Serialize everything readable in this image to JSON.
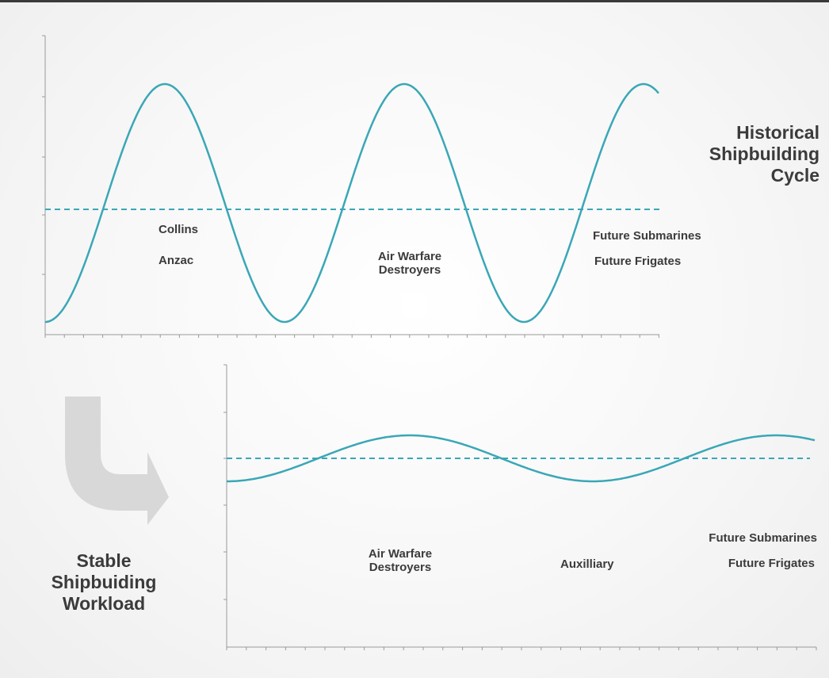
{
  "top_panel": {
    "title": "Historical\nShipbuilding\nCycle",
    "labels": [
      "Collins",
      "Anzac",
      "Air Warfare\nDestroyers",
      "Future Submarines",
      "Future Frigates"
    ]
  },
  "bottom_panel": {
    "title": "Stable\nShipbuiding\nWorkload",
    "labels": [
      "Air Warfare\nDestroyers",
      "Auxilliary",
      "Future Submarines",
      "Future Frigates"
    ]
  },
  "colors": {
    "curve": "#3aa7b6",
    "axis": "#9a9a9a",
    "arrow": "#d8d8d8",
    "text": "#3b3b3b"
  }
}
